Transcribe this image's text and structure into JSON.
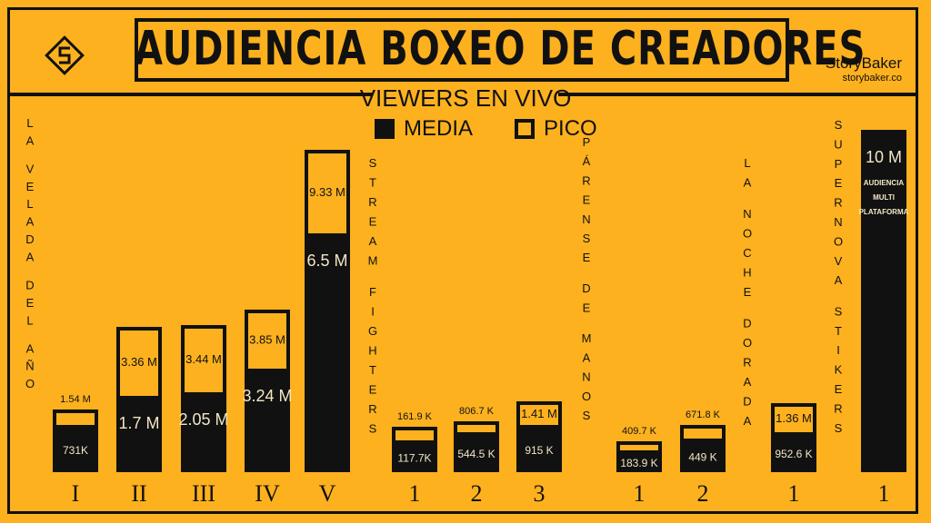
{
  "header": {
    "title": "AUDIENCIA BOXEO DE CREADORES",
    "subtitle": "VIEWERS EN VIVO",
    "brand_name": "StoryBaker",
    "brand_url": "storybaker.co"
  },
  "legend": [
    {
      "label": "MEDIA",
      "style": "filled"
    },
    {
      "label": "PICO",
      "style": "outline"
    }
  ],
  "colors": {
    "background": "#FDB11E",
    "ink": "#111111",
    "light_text": "#F2E6C4"
  },
  "chart_data": {
    "type": "bar",
    "title": "AUDIENCIA BOXEO DE CREADORES",
    "subtitle": "VIEWERS EN VIVO",
    "unit": "viewers",
    "series": [
      {
        "name": "MEDIA",
        "style": "filled"
      },
      {
        "name": "PICO",
        "style": "outline"
      }
    ],
    "groups": [
      {
        "name": "LA VELADA DEL AÑO",
        "events": [
          {
            "label": "I",
            "media": 731000,
            "media_text": "731K",
            "pico": 1540000,
            "pico_text": "1.54 M"
          },
          {
            "label": "II",
            "media": 1700000,
            "media_text": "1.7 M",
            "pico": 3360000,
            "pico_text": "3.36 M"
          },
          {
            "label": "III",
            "media": 2050000,
            "media_text": "2.05 M",
            "pico": 3440000,
            "pico_text": "3.44 M"
          },
          {
            "label": "IV",
            "media": 3240000,
            "media_text": "3.24 M",
            "pico": 3850000,
            "pico_text": "3.85 M"
          },
          {
            "label": "V",
            "media": 6500000,
            "media_text": "6.5 M",
            "pico": 9330000,
            "pico_text": "9.33 M"
          }
        ]
      },
      {
        "name": "STREAM FIGHTERS",
        "events": [
          {
            "label": "1",
            "media": 117700,
            "media_text": "117.7K",
            "pico": 161900,
            "pico_text": "161.9 K"
          },
          {
            "label": "2",
            "media": 544500,
            "media_text": "544.5 K",
            "pico": 806700,
            "pico_text": "806.7 K"
          },
          {
            "label": "3",
            "media": 915000,
            "media_text": "915 K",
            "pico": 1410000,
            "pico_text": "1.41 M"
          }
        ]
      },
      {
        "name": "PÁRENSE DE MANOS",
        "events": [
          {
            "label": "1",
            "media": 183900,
            "media_text": "183.9 K",
            "pico": 409700,
            "pico_text": "409.7 K"
          },
          {
            "label": "2",
            "media": 449000,
            "media_text": "449 K",
            "pico": 671800,
            "pico_text": "671.8 K"
          }
        ]
      },
      {
        "name": "LA NOCHE DORADA",
        "events": [
          {
            "label": "1",
            "media": 952600,
            "media_text": "952.6 K",
            "pico": 1360000,
            "pico_text": "1.36 M"
          }
        ]
      },
      {
        "name": "SUPERNOVA STIKERS",
        "events": [
          {
            "label": "1",
            "media": 10000000,
            "media_text": "10 M",
            "pico": null,
            "pico_text": "",
            "note": "AUDIENCIA MULTI PLATAFORMA"
          }
        ]
      }
    ]
  }
}
